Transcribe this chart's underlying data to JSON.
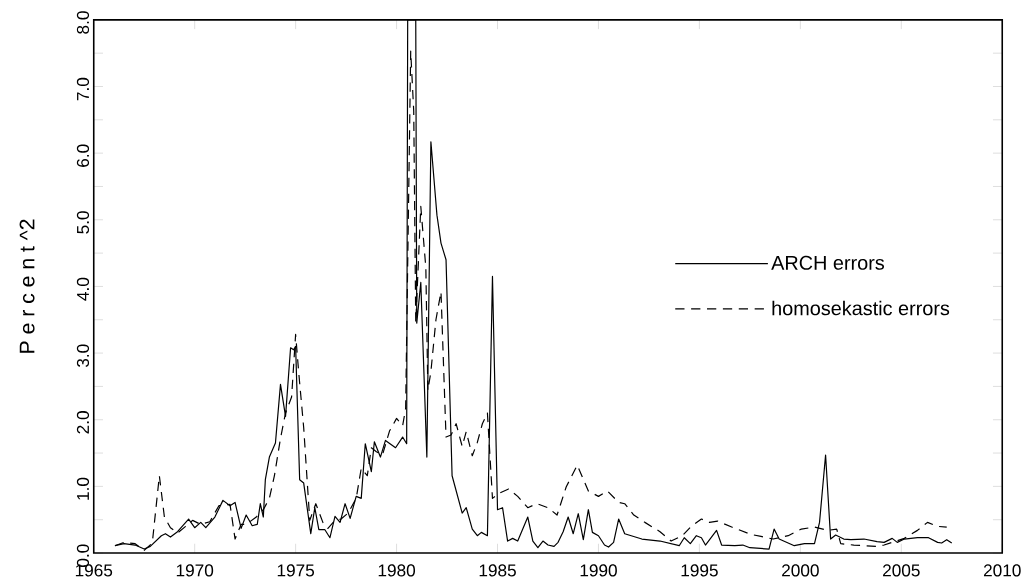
{
  "chart_data": {
    "type": "line",
    "ylabel": "P e r c e n t ^2",
    "xlim": [
      1965,
      2010
    ],
    "ylim": [
      0,
      8
    ],
    "xticks": [
      1965,
      1970,
      1975,
      1980,
      1985,
      1990,
      1995,
      2000,
      2005,
      2010
    ],
    "yticks": [
      {
        "value": 0,
        "label": "0.0"
      },
      {
        "value": 0.5,
        "label": null
      },
      {
        "value": 1,
        "label": "1.0"
      },
      {
        "value": 1.5,
        "label": null
      },
      {
        "value": 2,
        "label": "2.0"
      },
      {
        "value": 2.5,
        "label": null
      },
      {
        "value": 3,
        "label": "3.0"
      },
      {
        "value": 3.5,
        "label": null
      },
      {
        "value": 4,
        "label": "4.0"
      },
      {
        "value": 4.5,
        "label": null
      },
      {
        "value": 5,
        "label": "5.0"
      },
      {
        "value": 5.5,
        "label": null
      },
      {
        "value": 6,
        "label": "6.0"
      },
      {
        "value": 6.5,
        "label": null
      },
      {
        "value": 7,
        "label": "7.0"
      },
      {
        "value": 7.5,
        "label": null
      },
      {
        "value": 8,
        "label": "8.0"
      }
    ],
    "grid": false,
    "legend": "right",
    "marker": "none",
    "series": [
      {
        "name": "ARCH errors",
        "color": "#000000",
        "line_style": "solid",
        "x": [
          1966.05,
          1966.5,
          1967.05,
          1967.5,
          1967.8,
          1968.35,
          1968.55,
          1968.8,
          1969.15,
          1969.7,
          1970.0,
          1970.3,
          1970.55,
          1971.0,
          1971.4,
          1971.75,
          1972.0,
          1972.3,
          1972.55,
          1972.85,
          1973.1,
          1973.25,
          1973.4,
          1973.5,
          1973.7,
          1974.0,
          1974.25,
          1974.5,
          1974.75,
          1974.9,
          1975.0,
          1975.2,
          1975.4,
          1975.75,
          1975.95,
          1976.15,
          1976.45,
          1976.7,
          1976.95,
          1977.2,
          1977.45,
          1977.7,
          1978.0,
          1978.25,
          1978.45,
          1978.75,
          1978.9,
          1979.2,
          1979.45,
          1979.95,
          1980.3,
          1980.5,
          1980.55,
          1980.95,
          1981.0,
          1981.2,
          1981.5,
          1981.7,
          1982.0,
          1982.2,
          1982.45,
          1982.75,
          1983.0,
          1983.25,
          1983.45,
          1983.75,
          1984.0,
          1984.2,
          1984.5,
          1984.75,
          1985.0,
          1985.25,
          1985.5,
          1985.75,
          1986.0,
          1986.5,
          1986.75,
          1987.0,
          1987.25,
          1987.5,
          1987.8,
          1988.0,
          1988.25,
          1988.5,
          1988.75,
          1989.0,
          1989.25,
          1989.5,
          1989.7,
          1990.0,
          1990.3,
          1990.5,
          1990.75,
          1991.0,
          1991.3,
          1992.15,
          1993.05,
          1994.0,
          1994.25,
          1994.55,
          1994.85,
          1995.1,
          1995.3,
          1995.85,
          1996.1,
          1996.75,
          1997.15,
          1997.5,
          1998.45,
          1998.7,
          1998.95,
          1999.7,
          2000.2,
          2000.7,
          2000.95,
          2001.25,
          2001.5,
          2001.75,
          2002.15,
          2002.5,
          2003.15,
          2003.8,
          2004.15,
          2004.55,
          2004.8,
          2005.15,
          2005.8,
          2006.35,
          2006.8,
          2007.0,
          2007.25,
          2007.5
        ],
        "values": [
          0.11,
          0.14,
          0.12,
          0.06,
          0.1,
          0.26,
          0.29,
          0.24,
          0.32,
          0.51,
          0.38,
          0.46,
          0.38,
          0.54,
          0.79,
          0.71,
          0.76,
          0.37,
          0.57,
          0.41,
          0.43,
          0.74,
          0.54,
          1.1,
          1.44,
          1.65,
          2.53,
          2.05,
          3.08,
          3.05,
          3.1,
          1.1,
          1.05,
          0.29,
          0.68,
          0.35,
          0.35,
          0.23,
          0.55,
          0.46,
          0.74,
          0.52,
          0.85,
          0.82,
          1.64,
          1.22,
          1.67,
          1.44,
          1.69,
          1.58,
          1.74,
          1.64,
          8.0,
          8.0,
          3.45,
          4.06,
          1.44,
          6.17,
          5.07,
          4.65,
          4.4,
          1.16,
          0.88,
          0.6,
          0.68,
          0.36,
          0.26,
          0.31,
          0.26,
          4.15,
          0.65,
          0.68,
          0.18,
          0.22,
          0.18,
          0.54,
          0.18,
          0.08,
          0.18,
          0.12,
          0.1,
          0.16,
          0.32,
          0.54,
          0.29,
          0.59,
          0.2,
          0.65,
          0.31,
          0.26,
          0.12,
          0.09,
          0.16,
          0.51,
          0.29,
          0.21,
          0.18,
          0.11,
          0.23,
          0.14,
          0.26,
          0.23,
          0.12,
          0.34,
          0.12,
          0.11,
          0.12,
          0.08,
          0.06,
          0.36,
          0.21,
          0.11,
          0.14,
          0.14,
          0.46,
          1.47,
          0.21,
          0.27,
          0.21,
          0.2,
          0.21,
          0.17,
          0.16,
          0.22,
          0.16,
          0.21,
          0.23,
          0.23,
          0.16,
          0.15,
          0.2,
          0.15
        ]
      },
      {
        "name": "homosekastic errors",
        "color": "#000000",
        "line_style": "dashed",
        "x": [
          1966.05,
          1966.5,
          1967.05,
          1967.5,
          1967.9,
          1968.25,
          1968.5,
          1968.8,
          1969.15,
          1969.55,
          1969.9,
          1970.3,
          1970.75,
          1971.2,
          1971.75,
          1972.0,
          1972.3,
          1972.55,
          1973.05,
          1973.4,
          1973.7,
          1973.95,
          1974.25,
          1974.5,
          1974.8,
          1975.0,
          1975.15,
          1975.4,
          1975.7,
          1976.0,
          1976.35,
          1976.6,
          1976.95,
          1977.25,
          1977.6,
          1978.0,
          1978.25,
          1978.55,
          1978.75,
          1979.0,
          1979.3,
          1979.65,
          1980.0,
          1980.3,
          1980.45,
          1980.7,
          1980.85,
          1980.95,
          1981.2,
          1981.45,
          1981.55,
          1981.7,
          1981.95,
          1982.2,
          1982.45,
          1982.7,
          1982.95,
          1983.25,
          1983.45,
          1983.75,
          1984.0,
          1984.25,
          1984.5,
          1984.75,
          1985.1,
          1985.55,
          1986.0,
          1986.5,
          1986.95,
          1987.5,
          1987.95,
          1988.4,
          1988.95,
          1989.5,
          1990.0,
          1990.45,
          1991.0,
          1991.3,
          1991.75,
          1992.3,
          1993.05,
          1993.6,
          1994.15,
          1994.6,
          1995.1,
          1995.5,
          1995.9,
          1996.6,
          1997.55,
          1998.05,
          1998.65,
          1999.4,
          2000.05,
          2000.7,
          2001.35,
          2001.8,
          2002.0,
          2002.65,
          2003.75,
          2004.15,
          2005.15,
          2005.8,
          2006.3,
          2006.8,
          2007.25
        ],
        "values": [
          0.11,
          0.16,
          0.14,
          0.04,
          0.15,
          1.16,
          0.54,
          0.38,
          0.3,
          0.4,
          0.49,
          0.43,
          0.47,
          0.71,
          0.73,
          0.21,
          0.43,
          0.43,
          0.54,
          0.65,
          0.82,
          1.16,
          1.72,
          2.1,
          2.34,
          3.28,
          2.72,
          1.88,
          0.49,
          0.74,
          0.46,
          0.37,
          0.49,
          0.51,
          0.6,
          0.82,
          1.27,
          1.16,
          1.58,
          1.52,
          1.47,
          1.83,
          2.02,
          1.91,
          2.17,
          7.53,
          6.63,
          3.45,
          5.2,
          4.28,
          2.44,
          2.72,
          3.5,
          3.92,
          1.74,
          1.77,
          1.94,
          1.6,
          1.82,
          1.46,
          1.66,
          1.94,
          2.1,
          0.82,
          0.9,
          0.96,
          0.85,
          0.68,
          0.74,
          0.68,
          0.57,
          0.99,
          1.32,
          0.93,
          0.85,
          0.93,
          0.76,
          0.74,
          0.57,
          0.46,
          0.32,
          0.18,
          0.26,
          0.4,
          0.51,
          0.46,
          0.48,
          0.39,
          0.28,
          0.25,
          0.21,
          0.26,
          0.36,
          0.39,
          0.34,
          0.36,
          0.14,
          0.12,
          0.1,
          0.12,
          0.22,
          0.34,
          0.46,
          0.4,
          0.39
        ]
      }
    ]
  }
}
